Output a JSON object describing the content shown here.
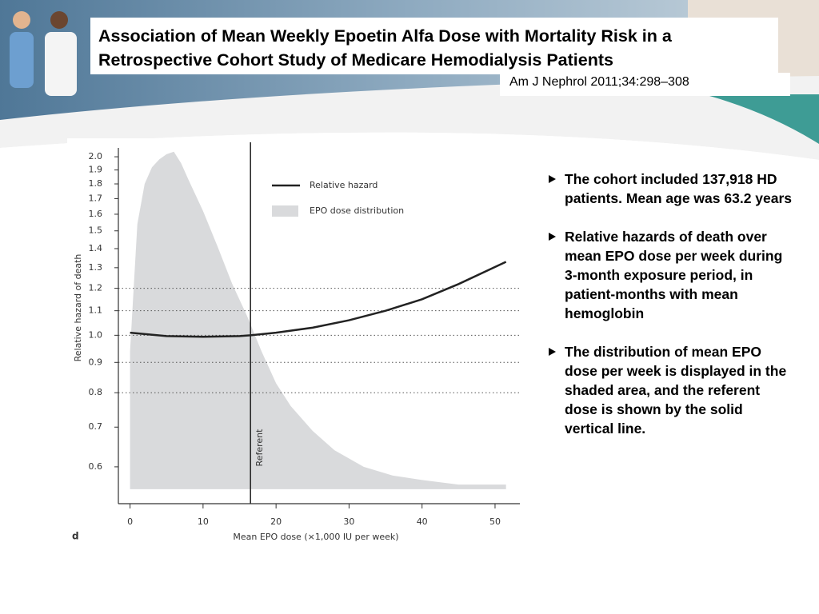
{
  "slide": {
    "title": "Association of Mean Weekly Epoetin Alfa Dose with Mortality Risk in a Retrospective Cohort Study of Medicare Hemodialysis Patients",
    "citation": "Am J Nephrol 2011;34:298–308",
    "bullets": [
      "The cohort included 137,918 HD patients. Mean age  was 63.2 years",
      "Relative hazards of death over mean EPO dose per week during 3-month exposure period, in patient-months with mean hemoglobin",
      "The distribution of mean EPO dose per week is displayed in the shaded area, and the referent dose is shown by the solid vertical line."
    ]
  },
  "chart_data": {
    "type": "line",
    "panel_label": "d",
    "x_label": "Mean EPO dose (×1,000 IU per week)",
    "y_label": "Relative hazard of death",
    "y_log": true,
    "xlim": [
      -1.6,
      53.4
    ],
    "xticks": [
      0,
      10,
      20,
      30,
      40,
      50
    ],
    "ylim": [
      0.52,
      2.07
    ],
    "yticks": [
      0.6,
      0.7,
      0.8,
      0.9,
      {
        "value": 1,
        "label": "1.0"
      },
      1.1,
      1.2,
      1.3,
      1.4,
      1.5,
      1.6,
      1.7,
      1.8,
      1.9,
      {
        "value": 2,
        "label": "2.0"
      }
    ],
    "reference_lines": [
      0.8,
      0.9,
      1,
      1.1,
      1.2
    ],
    "annotation": {
      "x": 16.5,
      "label": "Referent",
      "color": "#222222"
    },
    "series": [
      {
        "name": "Relative hazard",
        "type": "line",
        "color": "#222222",
        "x": [
          0,
          5,
          10,
          15,
          16.5,
          20,
          25,
          30,
          35,
          40,
          45,
          51.5
        ],
        "values": [
          1.01,
          0.997,
          0.994,
          0.997,
          1.0,
          1.01,
          1.03,
          1.06,
          1.1,
          1.15,
          1.22,
          1.33
        ]
      },
      {
        "name": "EPO dose distribution",
        "type": "area",
        "color": "#d9dadc",
        "base": 0.55,
        "x": [
          0,
          1,
          2,
          3,
          4,
          5,
          6,
          7,
          8,
          10,
          12,
          14,
          16,
          18,
          20,
          22,
          25,
          28,
          32,
          36,
          40,
          45,
          51.5
        ],
        "values": [
          0.94,
          1.54,
          1.8,
          1.92,
          1.98,
          2.02,
          2.04,
          1.95,
          1.83,
          1.62,
          1.41,
          1.22,
          1.08,
          0.94,
          0.83,
          0.76,
          0.69,
          0.64,
          0.6,
          0.58,
          0.57,
          0.56,
          0.56
        ]
      }
    ]
  }
}
